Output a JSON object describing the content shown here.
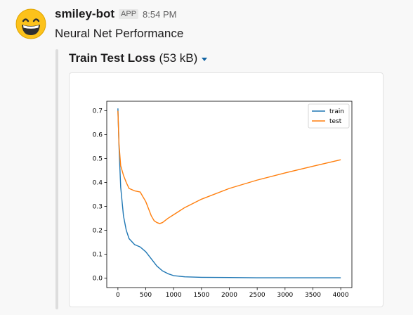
{
  "message": {
    "username": "smiley-bot",
    "badge": "APP",
    "timestamp": "8:54 PM",
    "text": "Neural Net Performance",
    "avatar_icon": "grinning-face-icon"
  },
  "attachment": {
    "file_name": "Train Test Loss",
    "file_size": "(53 kB)",
    "caret_icon": "caret-down-icon",
    "accent_color": "#1264a3"
  },
  "chart_data": {
    "type": "line",
    "title": "",
    "xlabel": "",
    "ylabel": "",
    "xlim": [
      -200,
      4200
    ],
    "ylim": [
      -0.04,
      0.74
    ],
    "xticks": [
      0,
      500,
      1000,
      1500,
      2000,
      2500,
      3000,
      3500,
      4000
    ],
    "yticks": [
      0.0,
      0.1,
      0.2,
      0.3,
      0.4,
      0.5,
      0.6,
      0.7
    ],
    "grid": false,
    "legend": "top-right",
    "series": [
      {
        "name": "train",
        "color": "#1f77b4",
        "x": [
          0,
          20,
          50,
          100,
          150,
          200,
          300,
          400,
          500,
          600,
          700,
          800,
          900,
          1000,
          1200,
          1500,
          2000,
          2500,
          3000,
          3500,
          4000
        ],
        "y": [
          0.71,
          0.55,
          0.38,
          0.26,
          0.2,
          0.165,
          0.14,
          0.13,
          0.11,
          0.08,
          0.05,
          0.03,
          0.018,
          0.01,
          0.005,
          0.003,
          0.002,
          0.001,
          0.001,
          0.001,
          0.001
        ]
      },
      {
        "name": "test",
        "color": "#ff7f0e",
        "x": [
          0,
          20,
          50,
          100,
          150,
          200,
          300,
          400,
          500,
          550,
          600,
          650,
          700,
          750,
          800,
          900,
          1000,
          1200,
          1500,
          2000,
          2500,
          3000,
          3500,
          4000
        ],
        "y": [
          0.7,
          0.56,
          0.47,
          0.43,
          0.4,
          0.375,
          0.365,
          0.36,
          0.32,
          0.29,
          0.26,
          0.24,
          0.232,
          0.228,
          0.232,
          0.25,
          0.265,
          0.295,
          0.33,
          0.375,
          0.41,
          0.44,
          0.468,
          0.495
        ]
      }
    ]
  }
}
